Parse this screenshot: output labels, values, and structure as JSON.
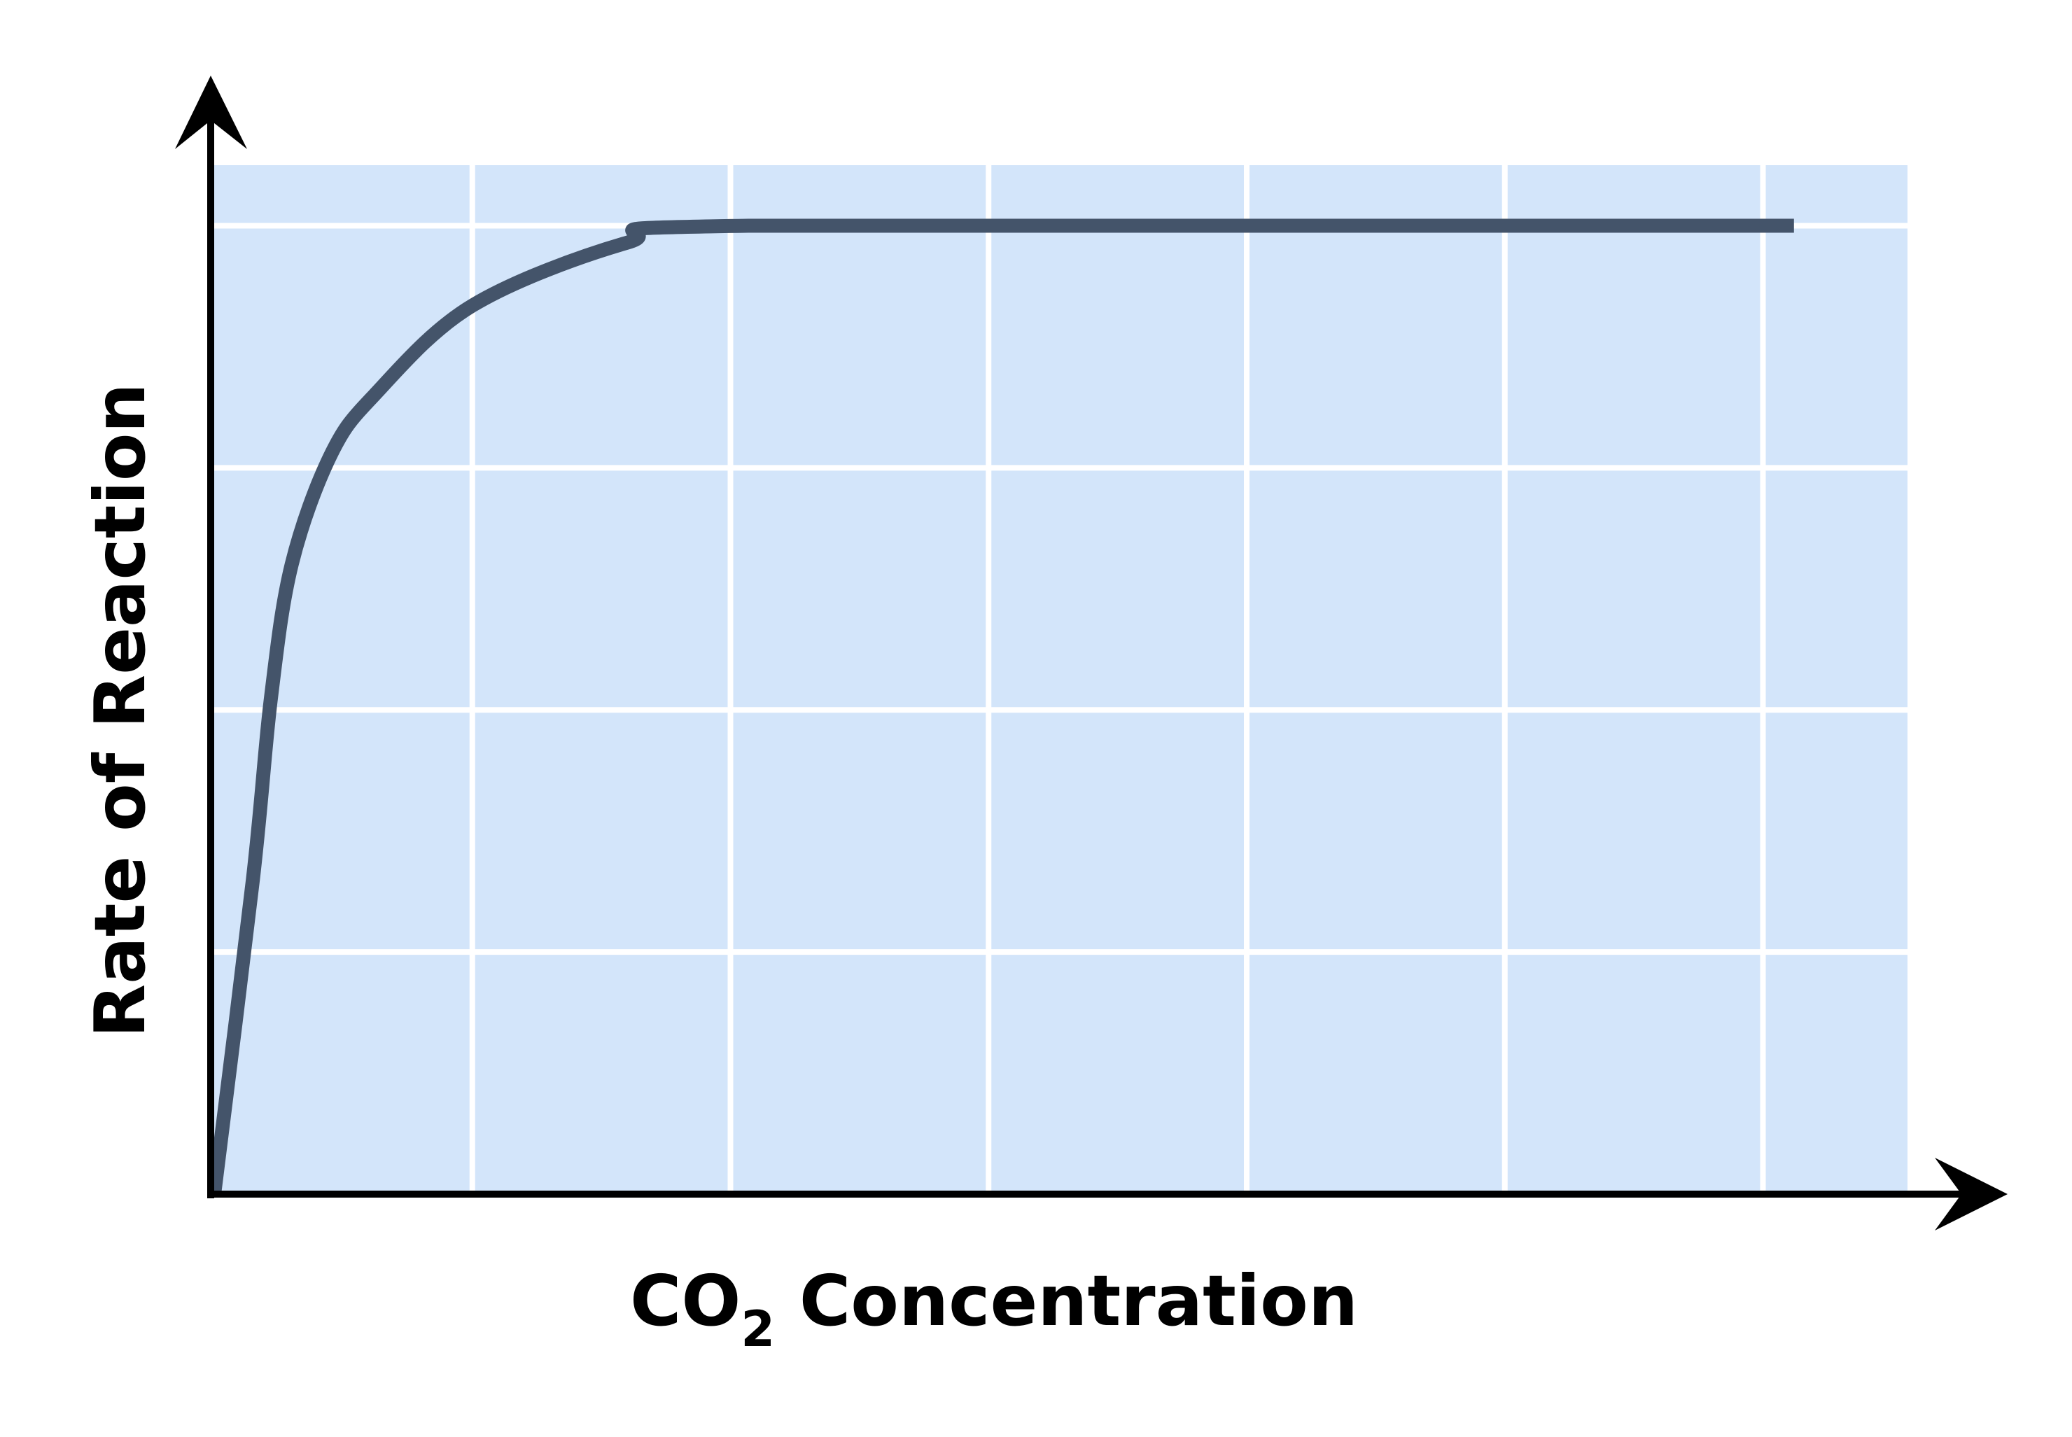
{
  "chart_data": {
    "type": "line",
    "title": "",
    "xlabel": {
      "prefix": "CO",
      "subscript": "2",
      "suffix": " Concentration"
    },
    "ylabel": "Rate of Reaction",
    "grid": true,
    "xlim": [
      0,
      6.56
    ],
    "ylim": [
      0,
      4.25
    ],
    "x_tick_labels": [],
    "y_tick_labels": [],
    "series": [
      {
        "x": [
          0,
          0.15,
          0.22,
          0.3,
          0.45,
          0.62,
          1.0,
          1.6,
          2.07,
          6.12
        ],
        "y": [
          0,
          1.3,
          2.05,
          2.6,
          3.05,
          3.3,
          3.67,
          3.93,
          4.0,
          4.0
        ]
      }
    ],
    "colors": {
      "plot_background": "#d3e5fa",
      "grid": "#ffffff",
      "line": "#44546a",
      "axis": "#000000"
    }
  }
}
